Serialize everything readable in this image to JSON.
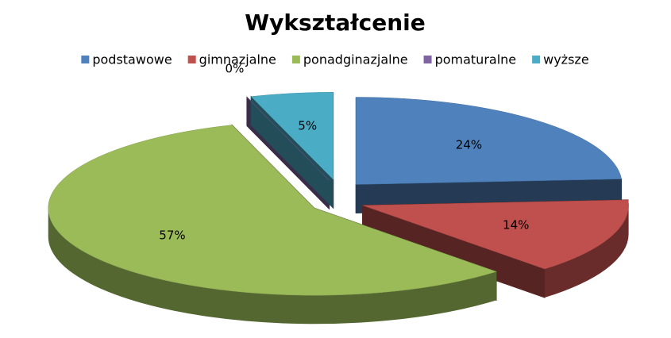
{
  "chart_data": {
    "type": "pie",
    "title": "Wykształcenie",
    "categories": [
      "podstawowe",
      "gimnazjalne",
      "ponadginazjalne",
      "pomaturalne",
      "wyższe"
    ],
    "values": [
      24,
      14,
      57,
      0,
      5
    ],
    "value_labels": [
      "24%",
      "14%",
      "57%",
      "0%",
      "5%"
    ],
    "colors": [
      "#4f81bd",
      "#c0504d",
      "#9bbb59",
      "#8064a2",
      "#4bacc6"
    ],
    "legend": "top"
  }
}
